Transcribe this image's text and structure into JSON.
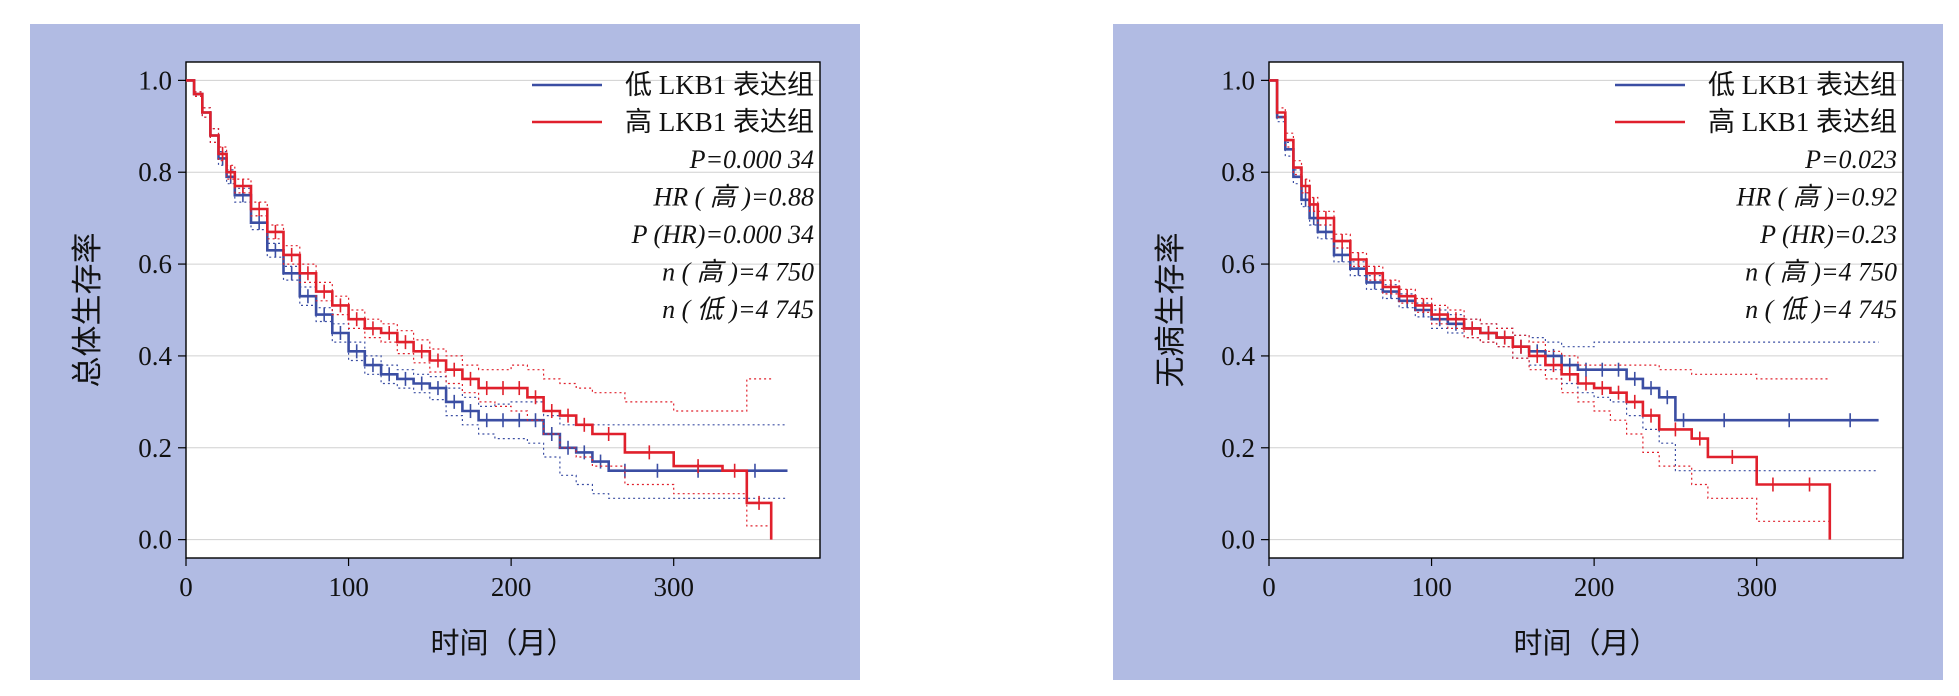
{
  "colors": {
    "background": "#b1bbe3",
    "plot_bg": "#ffffff",
    "grid": "#d0d0d0",
    "low": "#3b4ea3",
    "high": "#e0202c"
  },
  "chart_data": [
    {
      "type": "line",
      "ylabel": "总体生存率",
      "xlabel": "时间（月）",
      "xlim": [
        0,
        390
      ],
      "ylim": [
        -0.04,
        1.04
      ],
      "xticks": [
        "0",
        "100",
        "200",
        "300"
      ],
      "yticks": [
        "0.0",
        "0.2",
        "0.4",
        "0.6",
        "0.8",
        "1.0"
      ],
      "legend_position": "top-right",
      "grid": true,
      "legend": [
        "低 LKB1 表达组",
        "高 LKB1 表达组"
      ],
      "stats": {
        "p": "P=0.000 34",
        "hr": "HR ( 高 )=0.88",
        "p_hr": "P (HR)=0.000 34",
        "n_high": "n ( 高 )=4 750",
        "n_low": "n ( 低 )=4 745"
      },
      "series": [
        {
          "name": "低 LKB1 表达组",
          "color": "#3b4ea3",
          "x": [
            0,
            5,
            10,
            15,
            20,
            25,
            30,
            40,
            50,
            60,
            70,
            80,
            90,
            100,
            110,
            120,
            130,
            140,
            150,
            160,
            170,
            180,
            190,
            200,
            210,
            220,
            230,
            240,
            250,
            260,
            280,
            300,
            330,
            370
          ],
          "y": [
            1.0,
            0.97,
            0.93,
            0.88,
            0.83,
            0.79,
            0.75,
            0.69,
            0.63,
            0.58,
            0.53,
            0.49,
            0.45,
            0.41,
            0.38,
            0.36,
            0.35,
            0.34,
            0.33,
            0.3,
            0.28,
            0.26,
            0.26,
            0.26,
            0.26,
            0.23,
            0.2,
            0.19,
            0.17,
            0.15,
            0.15,
            0.15,
            0.15,
            0.15
          ],
          "upper": [
            1.0,
            0.975,
            0.94,
            0.895,
            0.845,
            0.805,
            0.765,
            0.705,
            0.645,
            0.595,
            0.55,
            0.505,
            0.47,
            0.43,
            0.4,
            0.38,
            0.37,
            0.36,
            0.355,
            0.33,
            0.31,
            0.29,
            0.295,
            0.3,
            0.3,
            0.27,
            0.25,
            0.25,
            0.25,
            0.25,
            0.25,
            0.25,
            0.25,
            0.25
          ],
          "lower": [
            1.0,
            0.965,
            0.92,
            0.865,
            0.815,
            0.775,
            0.735,
            0.675,
            0.615,
            0.565,
            0.51,
            0.475,
            0.43,
            0.39,
            0.36,
            0.34,
            0.33,
            0.32,
            0.305,
            0.27,
            0.25,
            0.23,
            0.22,
            0.22,
            0.21,
            0.18,
            0.14,
            0.12,
            0.1,
            0.09,
            0.09,
            0.09,
            0.09,
            0.09
          ]
        },
        {
          "name": "高 LKB1 表达组",
          "color": "#e0202c",
          "x": [
            0,
            5,
            10,
            15,
            20,
            25,
            30,
            40,
            50,
            60,
            70,
            80,
            90,
            100,
            110,
            120,
            130,
            140,
            150,
            160,
            170,
            180,
            190,
            200,
            210,
            220,
            230,
            240,
            250,
            270,
            300,
            330,
            345,
            360
          ],
          "y": [
            1.0,
            0.97,
            0.93,
            0.88,
            0.84,
            0.8,
            0.77,
            0.72,
            0.67,
            0.62,
            0.58,
            0.54,
            0.51,
            0.48,
            0.46,
            0.45,
            0.43,
            0.41,
            0.39,
            0.37,
            0.35,
            0.33,
            0.33,
            0.33,
            0.31,
            0.28,
            0.27,
            0.25,
            0.23,
            0.19,
            0.16,
            0.15,
            0.08,
            0.0
          ],
          "upper": [
            1.0,
            0.975,
            0.94,
            0.895,
            0.855,
            0.815,
            0.785,
            0.735,
            0.685,
            0.64,
            0.6,
            0.56,
            0.53,
            0.5,
            0.48,
            0.47,
            0.455,
            0.435,
            0.415,
            0.4,
            0.38,
            0.37,
            0.37,
            0.38,
            0.37,
            0.35,
            0.34,
            0.33,
            0.32,
            0.3,
            0.28,
            0.28,
            0.35,
            0.35
          ],
          "lower": [
            1.0,
            0.965,
            0.92,
            0.865,
            0.825,
            0.785,
            0.755,
            0.705,
            0.655,
            0.6,
            0.56,
            0.52,
            0.49,
            0.46,
            0.44,
            0.43,
            0.405,
            0.385,
            0.365,
            0.34,
            0.32,
            0.3,
            0.29,
            0.28,
            0.26,
            0.23,
            0.2,
            0.18,
            0.16,
            0.12,
            0.1,
            0.1,
            0.03,
            0.0
          ]
        }
      ]
    },
    {
      "type": "line",
      "ylabel": "无病生存率",
      "xlabel": "时间（月）",
      "xlim": [
        0,
        390
      ],
      "ylim": [
        -0.04,
        1.04
      ],
      "xticks": [
        "0",
        "100",
        "200",
        "300"
      ],
      "yticks": [
        "0.0",
        "0.2",
        "0.4",
        "0.6",
        "0.8",
        "1.0"
      ],
      "legend_position": "top-right",
      "grid": true,
      "legend": [
        "低 LKB1 表达组",
        "高 LKB1 表达组"
      ],
      "stats": {
        "p": "P=0.023",
        "hr": "HR ( 高 )=0.92",
        "p_hr": "P (HR)=0.23",
        "n_high": "n ( 高 )=4 750",
        "n_low": "n ( 低 )=4 745"
      },
      "series": [
        {
          "name": "低 LKB1 表达组",
          "color": "#3b4ea3",
          "x": [
            0,
            5,
            10,
            15,
            20,
            25,
            30,
            40,
            50,
            60,
            70,
            80,
            90,
            100,
            110,
            120,
            130,
            140,
            150,
            160,
            170,
            180,
            190,
            200,
            210,
            220,
            230,
            240,
            250,
            260,
            300,
            340,
            375
          ],
          "y": [
            1.0,
            0.92,
            0.85,
            0.79,
            0.74,
            0.7,
            0.67,
            0.62,
            0.59,
            0.56,
            0.54,
            0.52,
            0.5,
            0.48,
            0.47,
            0.46,
            0.45,
            0.44,
            0.42,
            0.41,
            0.4,
            0.38,
            0.37,
            0.37,
            0.37,
            0.35,
            0.33,
            0.31,
            0.26,
            0.26,
            0.26,
            0.26,
            0.26
          ],
          "upper": [
            1.0,
            0.93,
            0.865,
            0.805,
            0.755,
            0.715,
            0.685,
            0.635,
            0.605,
            0.575,
            0.555,
            0.535,
            0.515,
            0.5,
            0.49,
            0.48,
            0.47,
            0.46,
            0.445,
            0.44,
            0.43,
            0.42,
            0.42,
            0.43,
            0.43,
            0.43,
            0.43,
            0.43,
            0.43,
            0.43,
            0.43,
            0.43,
            0.43
          ],
          "lower": [
            1.0,
            0.91,
            0.835,
            0.775,
            0.725,
            0.685,
            0.655,
            0.605,
            0.575,
            0.545,
            0.525,
            0.505,
            0.485,
            0.46,
            0.45,
            0.44,
            0.43,
            0.42,
            0.395,
            0.38,
            0.37,
            0.34,
            0.32,
            0.31,
            0.3,
            0.27,
            0.24,
            0.21,
            0.15,
            0.15,
            0.15,
            0.15,
            0.15
          ]
        },
        {
          "name": "高 LKB1 表达组",
          "color": "#e0202c",
          "x": [
            0,
            5,
            10,
            15,
            20,
            25,
            30,
            40,
            50,
            60,
            70,
            80,
            90,
            100,
            110,
            120,
            130,
            140,
            150,
            160,
            170,
            180,
            190,
            200,
            210,
            220,
            230,
            240,
            260,
            270,
            300,
            320,
            345
          ],
          "y": [
            1.0,
            0.93,
            0.87,
            0.81,
            0.77,
            0.73,
            0.7,
            0.65,
            0.61,
            0.58,
            0.55,
            0.53,
            0.51,
            0.49,
            0.48,
            0.46,
            0.45,
            0.44,
            0.42,
            0.4,
            0.38,
            0.36,
            0.34,
            0.33,
            0.32,
            0.3,
            0.27,
            0.24,
            0.22,
            0.18,
            0.12,
            0.12,
            0.0
          ],
          "upper": [
            1.0,
            0.94,
            0.885,
            0.825,
            0.785,
            0.745,
            0.715,
            0.665,
            0.625,
            0.595,
            0.565,
            0.545,
            0.525,
            0.51,
            0.5,
            0.48,
            0.47,
            0.46,
            0.445,
            0.43,
            0.41,
            0.4,
            0.38,
            0.38,
            0.38,
            0.38,
            0.38,
            0.37,
            0.36,
            0.36,
            0.35,
            0.35,
            0.35
          ],
          "lower": [
            1.0,
            0.92,
            0.855,
            0.795,
            0.755,
            0.715,
            0.685,
            0.635,
            0.595,
            0.565,
            0.535,
            0.515,
            0.495,
            0.47,
            0.46,
            0.44,
            0.43,
            0.42,
            0.395,
            0.37,
            0.35,
            0.32,
            0.3,
            0.28,
            0.26,
            0.23,
            0.19,
            0.16,
            0.12,
            0.09,
            0.04,
            0.04,
            0.04
          ]
        }
      ]
    }
  ]
}
